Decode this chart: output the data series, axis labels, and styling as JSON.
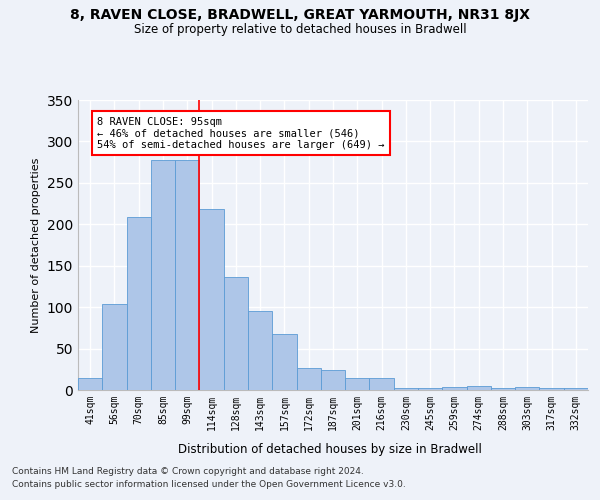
{
  "title1": "8, RAVEN CLOSE, BRADWELL, GREAT YARMOUTH, NR31 8JX",
  "title2": "Size of property relative to detached houses in Bradwell",
  "xlabel": "Distribution of detached houses by size in Bradwell",
  "ylabel": "Number of detached properties",
  "categories": [
    "41sqm",
    "56sqm",
    "70sqm",
    "85sqm",
    "99sqm",
    "114sqm",
    "128sqm",
    "143sqm",
    "157sqm",
    "172sqm",
    "187sqm",
    "201sqm",
    "216sqm",
    "230sqm",
    "245sqm",
    "259sqm",
    "274sqm",
    "288sqm",
    "303sqm",
    "317sqm",
    "332sqm"
  ],
  "values": [
    15,
    104,
    209,
    277,
    277,
    218,
    136,
    95,
    67,
    26,
    24,
    15,
    15,
    3,
    3,
    4,
    5,
    3,
    4,
    3,
    3
  ],
  "bar_color": "#aec6e8",
  "bar_edge_color": "#5b9bd5",
  "red_line_x": 4.5,
  "annotation_text": "8 RAVEN CLOSE: 95sqm\n← 46% of detached houses are smaller (546)\n54% of semi-detached houses are larger (649) →",
  "annotation_box_color": "white",
  "annotation_box_edge": "red",
  "footer1": "Contains HM Land Registry data © Crown copyright and database right 2024.",
  "footer2": "Contains public sector information licensed under the Open Government Licence v3.0.",
  "bg_color": "#eef2f9",
  "grid_color": "white",
  "ylim": [
    0,
    350
  ]
}
